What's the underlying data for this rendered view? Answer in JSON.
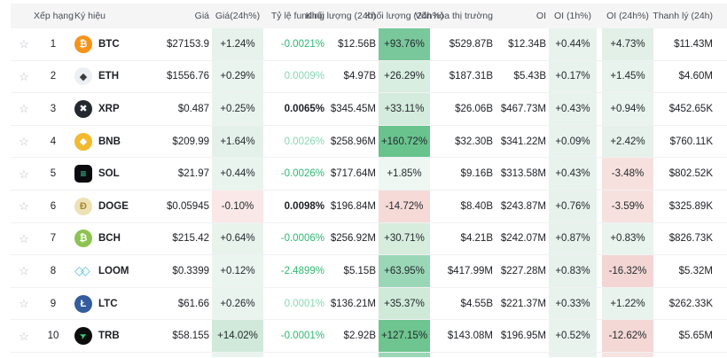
{
  "colors": {
    "header_bg": "#f5f5f5",
    "green_text": "#2eb872",
    "mint_text": "#85d9b2",
    "dark_text": "#1e2026",
    "star": "#b7bdc6"
  },
  "header": {
    "cols": [
      "Xếp hạng",
      "Ký hiệu",
      "Giá",
      "Giá(24h%)",
      "Tỷ lệ funding",
      "Khối lượng (24h)",
      "Khối lượng (24h%)",
      "Vốn hóa thị trường",
      "OI",
      "OI (1h%)",
      "OI (24h%)",
      "Thanh lý (24h)"
    ]
  },
  "rows": [
    {
      "rank": "1",
      "symbol": "BTC",
      "icon": {
        "name": "btc-icon",
        "glyph": "₿",
        "bg": "#f7931a",
        "fg": "#ffffff",
        "shape": "circle"
      },
      "price": "$27153.9",
      "price_chg": {
        "text": "+1.24%",
        "bg": "#e6f2eb"
      },
      "funding": {
        "text": "-0.0021%",
        "style": "green"
      },
      "vol": "$12.56B",
      "vol_chg": {
        "text": "+93.76%",
        "bg": "#79c89c"
      },
      "mcap": "$529.87B",
      "oi": "$12.34B",
      "oi_1h": {
        "text": "+0.44%",
        "bg": "#e9f3ee"
      },
      "oi_24h": {
        "text": "+4.73%",
        "bg": "#e2f0e8"
      },
      "liq": "$11.43M"
    },
    {
      "rank": "2",
      "symbol": "ETH",
      "icon": {
        "name": "eth-icon",
        "glyph": "◆",
        "bg": "#eceff3",
        "fg": "#3c3c3d",
        "shape": "circle"
      },
      "price": "$1556.76",
      "price_chg": {
        "text": "+0.29%",
        "bg": "#eaf4ef"
      },
      "funding": {
        "text": "0.0009%",
        "style": "mint"
      },
      "vol": "$4.97B",
      "vol_chg": {
        "text": "+26.29%",
        "bg": "#d8eee0"
      },
      "mcap": "$187.31B",
      "oi": "$5.43B",
      "oi_1h": {
        "text": "+0.17%",
        "bg": "#e9f3ee"
      },
      "oi_24h": {
        "text": "+1.45%",
        "bg": "#e7f3ec"
      },
      "liq": "$4.60M"
    },
    {
      "rank": "3",
      "symbol": "XRP",
      "icon": {
        "name": "xrp-icon",
        "glyph": "✖",
        "bg": "#23292f",
        "fg": "#ffffff",
        "shape": "circle"
      },
      "price": "$0.487",
      "price_chg": {
        "text": "+0.25%",
        "bg": "#eaf4ef"
      },
      "funding": {
        "text": "0.0065%",
        "style": "dark"
      },
      "vol": "$345.45M",
      "vol_chg": {
        "text": "+33.11%",
        "bg": "#d4ecdd"
      },
      "mcap": "$26.06B",
      "oi": "$467.73M",
      "oi_1h": {
        "text": "+0.43%",
        "bg": "#e9f3ee"
      },
      "oi_24h": {
        "text": "+0.94%",
        "bg": "#e9f4ee"
      },
      "liq": "$452.65K"
    },
    {
      "rank": "4",
      "symbol": "BNB",
      "icon": {
        "name": "bnb-icon",
        "glyph": "◆",
        "bg": "#f3ba2f",
        "fg": "#ffffff",
        "shape": "circle"
      },
      "price": "$209.99",
      "price_chg": {
        "text": "+1.64%",
        "bg": "#e4f1ea"
      },
      "funding": {
        "text": "0.0026%",
        "style": "mint"
      },
      "vol": "$258.96M",
      "vol_chg": {
        "text": "+160.72%",
        "bg": "#68c38d"
      },
      "mcap": "$32.30B",
      "oi": "$341.22M",
      "oi_1h": {
        "text": "+0.09%",
        "bg": "#e9f3ee"
      },
      "oi_24h": {
        "text": "+2.42%",
        "bg": "#e5f1ea"
      },
      "liq": "$760.11K"
    },
    {
      "rank": "5",
      "symbol": "SOL",
      "icon": {
        "name": "sol-icon",
        "glyph": "≡",
        "bg": "#0b0b0f",
        "fg": "#3ee6a8",
        "shape": "square"
      },
      "price": "$21.97",
      "price_chg": {
        "text": "+0.44%",
        "bg": "#e9f4ee"
      },
      "funding": {
        "text": "-0.0026%",
        "style": "green"
      },
      "vol": "$717.64M",
      "vol_chg": {
        "text": "+1.85%",
        "bg": "#eef7f2"
      },
      "mcap": "$9.16B",
      "oi": "$313.58M",
      "oi_1h": {
        "text": "+0.43%",
        "bg": "#e9f3ee"
      },
      "oi_24h": {
        "text": "-3.48%",
        "bg": "#f7e1de"
      },
      "liq": "$802.52K"
    },
    {
      "rank": "6",
      "symbol": "DOGE",
      "icon": {
        "name": "doge-icon",
        "glyph": "Ð",
        "bg": "#ede1b6",
        "fg": "#a8892f",
        "shape": "circle"
      },
      "price": "$0.05945",
      "price_chg": {
        "text": "-0.10%",
        "bg": "#f9e8e7"
      },
      "funding": {
        "text": "0.0098%",
        "style": "dark"
      },
      "vol": "$196.84M",
      "vol_chg": {
        "text": "-14.72%",
        "bg": "#f5dad7"
      },
      "mcap": "$8.40B",
      "oi": "$243.87M",
      "oi_1h": {
        "text": "+0.76%",
        "bg": "#e7f2ec"
      },
      "oi_24h": {
        "text": "-3.59%",
        "bg": "#f7e1de"
      },
      "liq": "$325.89K"
    },
    {
      "rank": "7",
      "symbol": "BCH",
      "icon": {
        "name": "bch-icon",
        "glyph": "₿",
        "bg": "#8dc351",
        "fg": "#ffffff",
        "shape": "circle"
      },
      "price": "$215.42",
      "price_chg": {
        "text": "+0.64%",
        "bg": "#e8f3ec"
      },
      "funding": {
        "text": "-0.0006%",
        "style": "green"
      },
      "vol": "$256.92M",
      "vol_chg": {
        "text": "+30.71%",
        "bg": "#d6edde"
      },
      "mcap": "$4.21B",
      "oi": "$242.07M",
      "oi_1h": {
        "text": "+0.87%",
        "bg": "#e7f2ec"
      },
      "oi_24h": {
        "text": "+0.83%",
        "bg": "#e9f4ee"
      },
      "liq": "$826.73K"
    },
    {
      "rank": "8",
      "symbol": "LOOM",
      "icon": {
        "name": "loom-icon",
        "glyph": "◇",
        "bg": "none",
        "fg": "#55bfdf",
        "shape": "overlap"
      },
      "price": "$0.3399",
      "price_chg": {
        "text": "+0.12%",
        "bg": "#ebf5f0"
      },
      "funding": {
        "text": "-2.4899%",
        "style": "green"
      },
      "vol": "$5.15B",
      "vol_chg": {
        "text": "+63.95%",
        "bg": "#9ad7b6"
      },
      "mcap": "$417.99M",
      "oi": "$227.28M",
      "oi_1h": {
        "text": "+0.83%",
        "bg": "#e7f2ec"
      },
      "oi_24h": {
        "text": "-16.32%",
        "bg": "#f3d6d3"
      },
      "liq": "$5.32M"
    },
    {
      "rank": "9",
      "symbol": "LTC",
      "icon": {
        "name": "ltc-icon",
        "glyph": "Ł",
        "bg": "#345d9d",
        "fg": "#ffffff",
        "shape": "circle"
      },
      "price": "$61.66",
      "price_chg": {
        "text": "+0.26%",
        "bg": "#eaf4ef"
      },
      "funding": {
        "text": "0.0001%",
        "style": "mint"
      },
      "vol": "$136.21M",
      "vol_chg": {
        "text": "+35.37%",
        "bg": "#cfead9"
      },
      "mcap": "$4.55B",
      "oi": "$221.37M",
      "oi_1h": {
        "text": "+0.33%",
        "bg": "#e9f3ee"
      },
      "oi_24h": {
        "text": "+1.22%",
        "bg": "#e8f3ed"
      },
      "liq": "$262.33K"
    },
    {
      "rank": "10",
      "symbol": "TRB",
      "icon": {
        "name": "trb-icon",
        "glyph": "➤",
        "bg": "#0d0d0d",
        "fg": "#2fd483",
        "shape": "circle",
        "rotated": true
      },
      "price": "$58.155",
      "price_chg": {
        "text": "+14.02%",
        "bg": "#d0e9da"
      },
      "funding": {
        "text": "-0.0001%",
        "style": "green"
      },
      "vol": "$2.92B",
      "vol_chg": {
        "text": "+127.15%",
        "bg": "#6ec58f"
      },
      "mcap": "$143.08M",
      "oi": "$196.95M",
      "oi_1h": {
        "text": "+0.52%",
        "bg": "#e9f3ee"
      },
      "oi_24h": {
        "text": "-12.62%",
        "bg": "#f4d8d5"
      },
      "liq": "$5.65M"
    }
  ],
  "partial_row": {
    "price_chg_bg": "#eaf4ef",
    "vol_chg_bg": "#9ad7b6",
    "oi_1h_bg": "#e9f3ee",
    "oi_24h_bg": "#f7e3e0"
  },
  "star_glyph": "☆"
}
